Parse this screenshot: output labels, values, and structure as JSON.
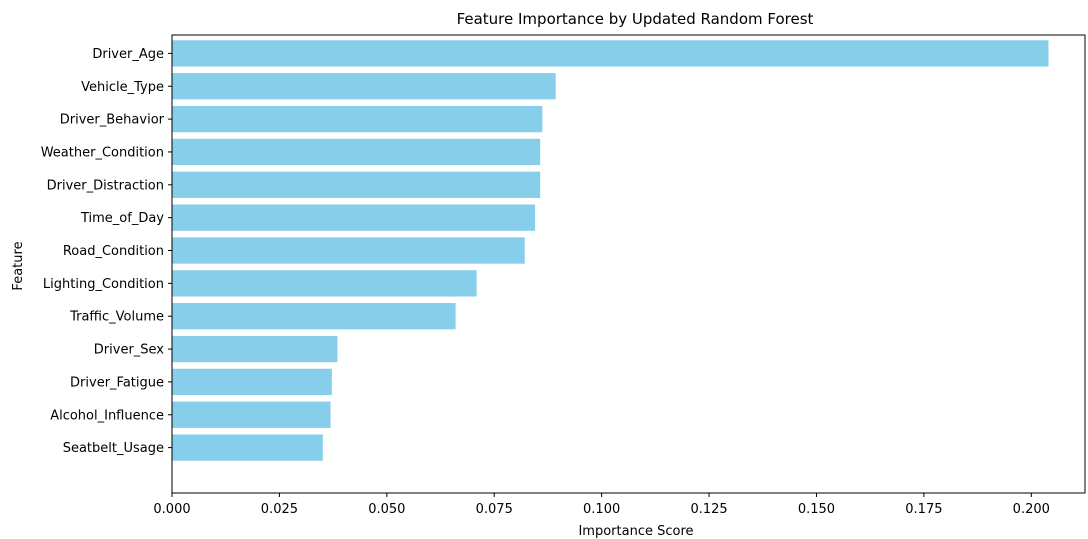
{
  "chart_data": {
    "type": "bar",
    "orientation": "horizontal",
    "title": "Feature Importance by Updated Random Forest",
    "xlabel": "Importance Score",
    "ylabel": "Feature",
    "categories": [
      "Driver_Age",
      "Vehicle_Type",
      "Driver_Behavior",
      "Weather_Condition",
      "Driver_Distraction",
      "Time_of_Day",
      "Road_Condition",
      "Lighting_Condition",
      "Traffic_Volume",
      "Driver_Sex",
      "Driver_Fatigue",
      "Alcohol_Influence",
      "Seatbelt_Usage"
    ],
    "values": [
      0.204,
      0.0893,
      0.0862,
      0.0857,
      0.0857,
      0.0845,
      0.0821,
      0.0709,
      0.066,
      0.0385,
      0.0372,
      0.0369,
      0.0351
    ],
    "xlim": [
      0,
      0.2125
    ],
    "xticks": [
      0.0,
      0.025,
      0.05,
      0.075,
      0.1,
      0.125,
      0.15,
      0.175,
      0.2
    ],
    "xtick_labels": [
      "0.000",
      "0.025",
      "0.050",
      "0.075",
      "0.100",
      "0.125",
      "0.150",
      "0.175",
      "0.200"
    ],
    "bar_color": "#87ceeb",
    "grid": false,
    "legend": false
  }
}
